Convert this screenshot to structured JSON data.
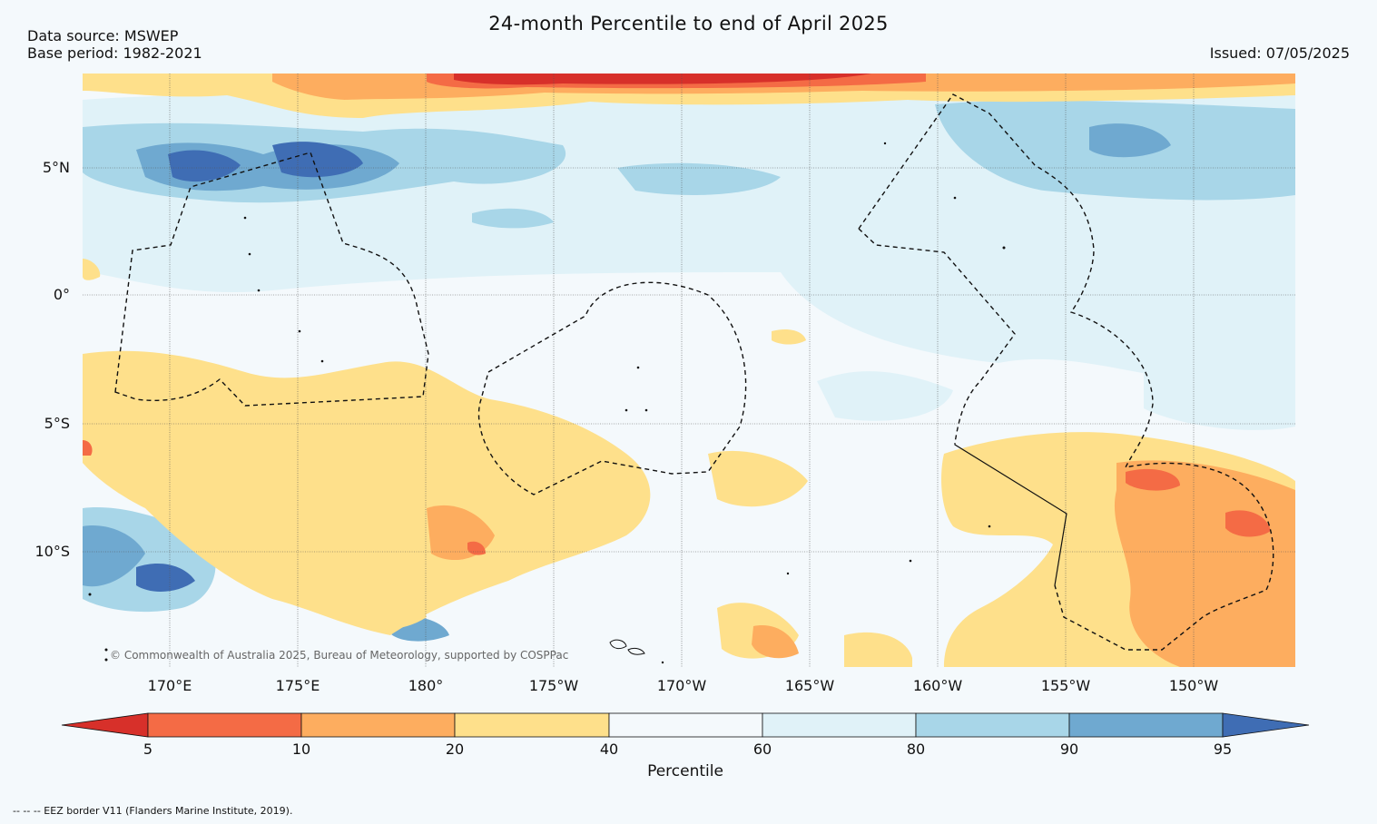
{
  "header": {
    "title": "24-month Percentile to end of April 2025",
    "data_source": "Data source: MSWEP",
    "base_period": "Base period: 1982-2021",
    "issued": "Issued: 07/05/2025"
  },
  "map": {
    "lat_labels": [
      "5°N",
      "0°",
      "5°S",
      "10°S"
    ],
    "lon_labels": [
      "170°E",
      "175°E",
      "180°",
      "175°W",
      "170°W",
      "165°W",
      "160°W",
      "155°W",
      "150°W"
    ],
    "copyright": "© Commonwealth of Australia 2025, Bureau of Meteorology, supported by COSPPac"
  },
  "colorbar": {
    "title": "Percentile",
    "ticks": [
      "5",
      "10",
      "20",
      "40",
      "60",
      "80",
      "90",
      "95"
    ],
    "colors": [
      "#d7302a",
      "#f46b45",
      "#fdad5f",
      "#fee08b",
      "#f4f9fc",
      "#e0f2f8",
      "#a8d6e8",
      "#6fa9d0",
      "#3f6db4"
    ]
  },
  "footnote": "-- -- -- EEZ border V11 (Flanders Marine Institute, 2019)."
}
